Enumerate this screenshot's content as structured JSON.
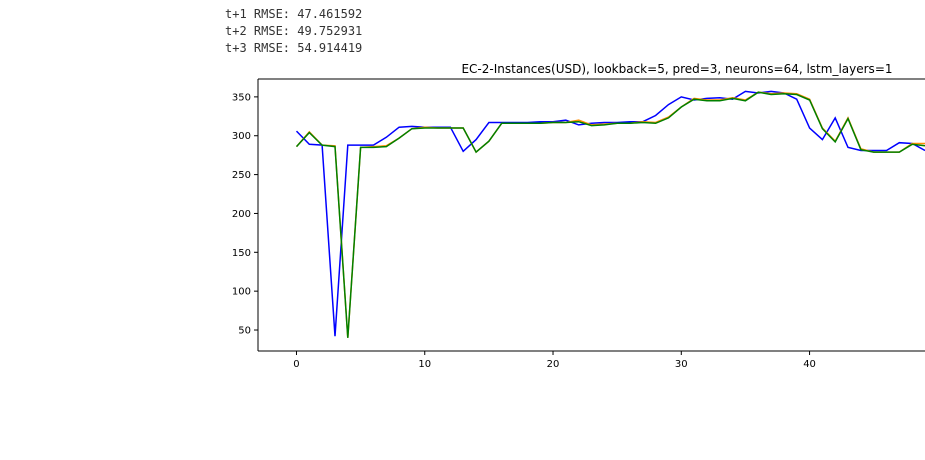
{
  "rmse_lines": [
    "t+1 RMSE: 47.461592",
    "t+2 RMSE: 49.752931",
    "t+3 RMSE: 54.914419"
  ],
  "chart_data": {
    "type": "line",
    "title": "EC-2-Instances(USD), lookback=5, pred=3, neurons=64, lstm_layers=1",
    "xlabel": "",
    "ylabel": "",
    "xlim": [
      -3,
      49
    ],
    "ylim": [
      23,
      373
    ],
    "xticks": [
      0,
      10,
      20,
      30,
      40
    ],
    "yticks": [
      50,
      100,
      150,
      200,
      250,
      300,
      350
    ],
    "colors": [
      "#0000ff",
      "#ff8c00",
      "#008000"
    ],
    "x": [
      0,
      1,
      2,
      3,
      4,
      5,
      6,
      7,
      8,
      9,
      10,
      11,
      12,
      13,
      14,
      15,
      16,
      17,
      18,
      19,
      20,
      21,
      22,
      23,
      24,
      25,
      26,
      27,
      28,
      29,
      30,
      31,
      32,
      33,
      34,
      35,
      36,
      37,
      38,
      39,
      40,
      41,
      42,
      43,
      44,
      45,
      46,
      47,
      48,
      49
    ],
    "series": [
      {
        "values": [
          306,
          289,
          288,
          42,
          288,
          288,
          288,
          298,
          311,
          312,
          311,
          311,
          311,
          280,
          295,
          317,
          317,
          317,
          317,
          318,
          318,
          320,
          314,
          316,
          317,
          317,
          318,
          318,
          326,
          340,
          350,
          346,
          348,
          349,
          347,
          357,
          355,
          357,
          355,
          347,
          310,
          295,
          323,
          285,
          281,
          281,
          281,
          291,
          290,
          281
        ]
      },
      {
        "values": [
          286,
          305,
          288,
          287,
          40,
          285,
          286,
          287,
          297,
          309,
          311,
          310,
          310,
          310,
          279,
          293,
          316,
          316,
          316,
          316,
          317,
          317,
          320,
          314,
          315,
          316,
          316,
          318,
          317,
          324,
          337,
          348,
          346,
          346,
          349,
          346,
          356,
          354,
          355,
          354,
          347,
          310,
          293,
          323,
          283,
          279,
          279,
          279,
          290,
          290
        ]
      },
      {
        "values": [
          286,
          304,
          288,
          286,
          40,
          285,
          285,
          286,
          297,
          309,
          310,
          310,
          310,
          310,
          279,
          293,
          316,
          316,
          316,
          316,
          317,
          317,
          318,
          313,
          314,
          316,
          316,
          317,
          316,
          323,
          337,
          347,
          345,
          345,
          348,
          345,
          356,
          353,
          354,
          353,
          346,
          309,
          292,
          322,
          282,
          279,
          279,
          279,
          289,
          287
        ]
      }
    ]
  }
}
